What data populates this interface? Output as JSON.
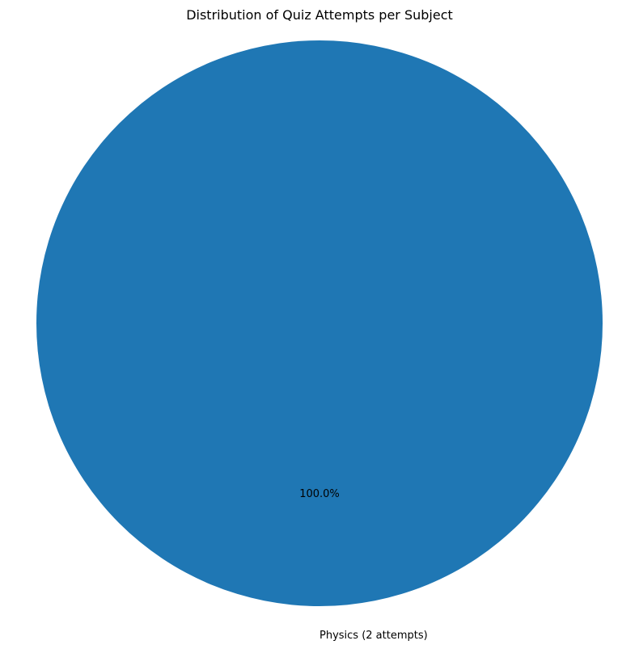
{
  "chart_data": {
    "type": "pie",
    "title": "Distribution of Quiz Attempts per Subject",
    "categories": [
      "Physics (2 attempts)"
    ],
    "values": [
      2
    ],
    "percent_labels": [
      "100.0%"
    ],
    "colors": [
      "#1f77b4"
    ],
    "legend": "none"
  }
}
